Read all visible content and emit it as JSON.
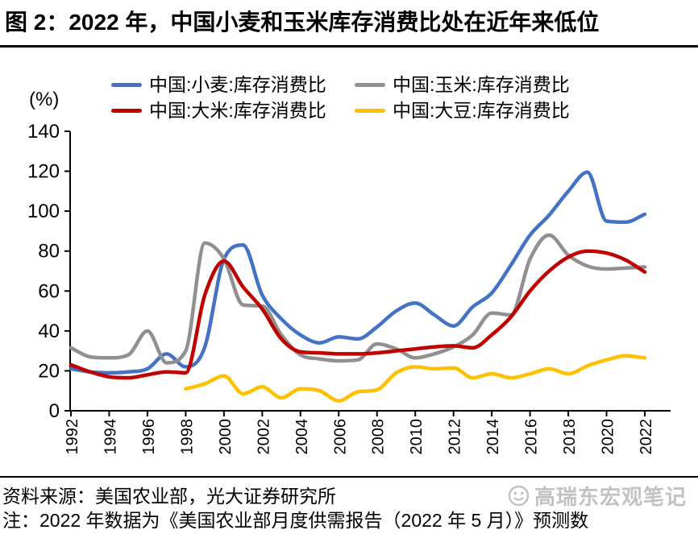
{
  "title": "图 2：2022 年，中国小麦和玉米库存消费比处在近年来低位",
  "y_axis_unit_label": "(%)",
  "legend": [
    {
      "label": "中国:小麦:库存消费比",
      "color": "#4472C4"
    },
    {
      "label": "中国:玉米:库存消费比",
      "color": "#909090"
    },
    {
      "label": "中国:大米:库存消费比",
      "color": "#C00000"
    },
    {
      "label": "中国:大豆:库存消费比",
      "color": "#FFC000"
    }
  ],
  "chart_data": {
    "type": "line",
    "title": "",
    "xlabel": "",
    "ylabel": "(%)",
    "ylim": [
      0,
      140
    ],
    "y_ticks": [
      0,
      20,
      40,
      60,
      80,
      100,
      120,
      140
    ],
    "x_tick_labels": [
      "1992",
      "1994",
      "1996",
      "1998",
      "2000",
      "2002",
      "2004",
      "2006",
      "2008",
      "2010",
      "2012",
      "2014",
      "2016",
      "2018",
      "2020",
      "2022"
    ],
    "grid": false,
    "legend_position": "top",
    "x": [
      1992,
      1993,
      1994,
      1995,
      1996,
      1997,
      1998,
      1999,
      2000,
      2001,
      2002,
      2003,
      2004,
      2005,
      2006,
      2007,
      2008,
      2009,
      2010,
      2011,
      2012,
      2013,
      2014,
      2015,
      2016,
      2017,
      2018,
      2019,
      2020,
      2021,
      2022
    ],
    "series": [
      {
        "name": "中国:小麦:库存消费比",
        "color": "#4472C4",
        "values": [
          21,
          19.5,
          19,
          19.5,
          21,
          28.5,
          22,
          32,
          76,
          83,
          58,
          46,
          38,
          34,
          37,
          36,
          42,
          50,
          54,
          48,
          42.5,
          52,
          59,
          73,
          88,
          98,
          110,
          119.5,
          95,
          94.5,
          98.5
        ]
      },
      {
        "name": "中国:玉米:库存消费比",
        "color": "#909090",
        "values": [
          31.5,
          27,
          26.5,
          28,
          40,
          24,
          30,
          84,
          76,
          53,
          52.5,
          38,
          28,
          26,
          25,
          25.5,
          33.5,
          31,
          26.5,
          28.5,
          32,
          38,
          49,
          48,
          76,
          88,
          78,
          72.5,
          71,
          71.5,
          72
        ]
      },
      {
        "name": "中国:大米:库存消费比",
        "color": "#C00000",
        "values": [
          23,
          19.5,
          17,
          16.5,
          18,
          19.5,
          19,
          58,
          75,
          62,
          51,
          36,
          29.5,
          29,
          28.5,
          28.5,
          29,
          30,
          31,
          32,
          32.5,
          31.5,
          38,
          47,
          60,
          70,
          77,
          80,
          79,
          75.5,
          69.5
        ]
      },
      {
        "name": "中国:大豆:库存消费比",
        "color": "#FFC000",
        "values": [
          null,
          null,
          null,
          null,
          null,
          null,
          11,
          13.5,
          17.5,
          8.5,
          12,
          6.5,
          11,
          10,
          5,
          9.5,
          10.5,
          19,
          22,
          21,
          21.5,
          16.5,
          18.5,
          16.5,
          18.5,
          21,
          18.5,
          22.5,
          25.5,
          27.5,
          26.5
        ]
      }
    ]
  },
  "footer": {
    "source": "资料来源：美国农业部，光大证券研究所",
    "note": "注：2022 年数据为《美国农业部月度供需报告（2022 年 5 月）》预测数"
  },
  "watermark": "高瑞东宏观笔记"
}
